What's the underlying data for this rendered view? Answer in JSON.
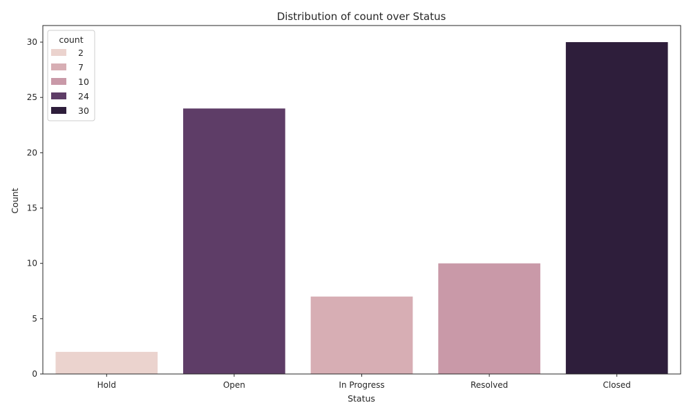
{
  "chart_data": {
    "type": "bar",
    "title": "Distribution of count over Status",
    "xlabel": "Status",
    "ylabel": "Count",
    "categories": [
      "Hold",
      "Open",
      "In Progress",
      "Resolved",
      "Closed"
    ],
    "values": [
      2,
      24,
      7,
      10,
      30
    ],
    "colors": [
      "#ebd3ce",
      "#5e3d67",
      "#d7aeb4",
      "#c999a8",
      "#2e1e3b"
    ],
    "ylim": [
      0,
      31.5
    ],
    "yticks": [
      0,
      5,
      10,
      15,
      20,
      25,
      30
    ],
    "grid": false,
    "legend": {
      "title": "count",
      "placement": "top-left",
      "entries": [
        {
          "label": "2",
          "color": "#ebd3ce"
        },
        {
          "label": "7",
          "color": "#d7aeb4"
        },
        {
          "label": "10",
          "color": "#c999a8"
        },
        {
          "label": "24",
          "color": "#5e3d67"
        },
        {
          "label": "30",
          "color": "#2e1e3b"
        }
      ]
    }
  }
}
